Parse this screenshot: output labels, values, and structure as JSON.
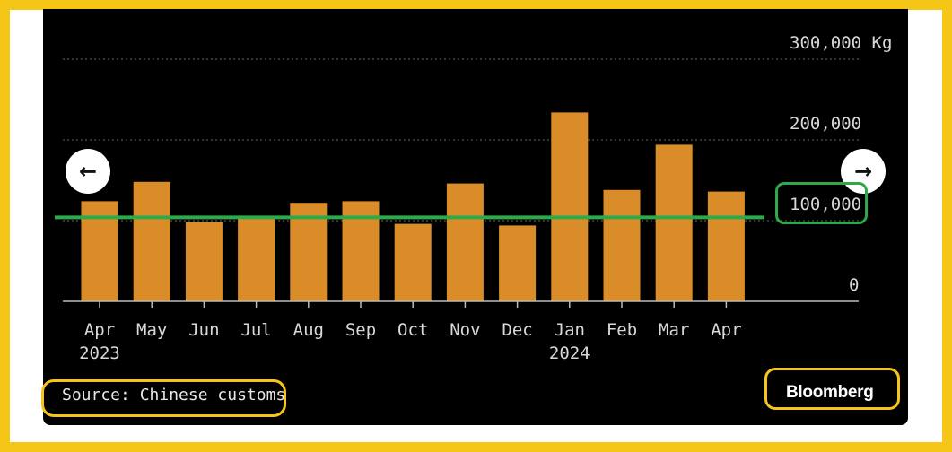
{
  "chart_data": {
    "type": "bar",
    "categories": [
      "Apr",
      "May",
      "Jun",
      "Jul",
      "Aug",
      "Sep",
      "Oct",
      "Nov",
      "Dec",
      "Jan",
      "Feb",
      "Mar",
      "Apr"
    ],
    "year_labels": [
      {
        "category_index": 0,
        "label": "2023"
      },
      {
        "category_index": 9,
        "label": "2024"
      }
    ],
    "values": [
      124000,
      148000,
      98000,
      104000,
      122000,
      124000,
      96000,
      146000,
      94000,
      234000,
      138000,
      194000,
      136000
    ],
    "ylim": [
      0,
      300000
    ],
    "yticks": [
      {
        "value": 0,
        "label": "0"
      },
      {
        "value": 100000,
        "label": "100,000"
      },
      {
        "value": 200000,
        "label": "200,000"
      },
      {
        "value": 300000,
        "label": "300,000 Kg"
      }
    ],
    "grid": true,
    "bar_color": "#d98c28",
    "reference_line": {
      "value": 104000,
      "color": "#2ea84a"
    },
    "axis_side": "right"
  },
  "footer": {
    "source": "Source: Chinese customs",
    "brand": "Bloomberg"
  },
  "nav": {
    "prev_icon": "←",
    "next_icon": "→"
  },
  "colors": {
    "frame": "#f5c518",
    "highlight_green": "#2ea84a",
    "background": "#000000"
  }
}
